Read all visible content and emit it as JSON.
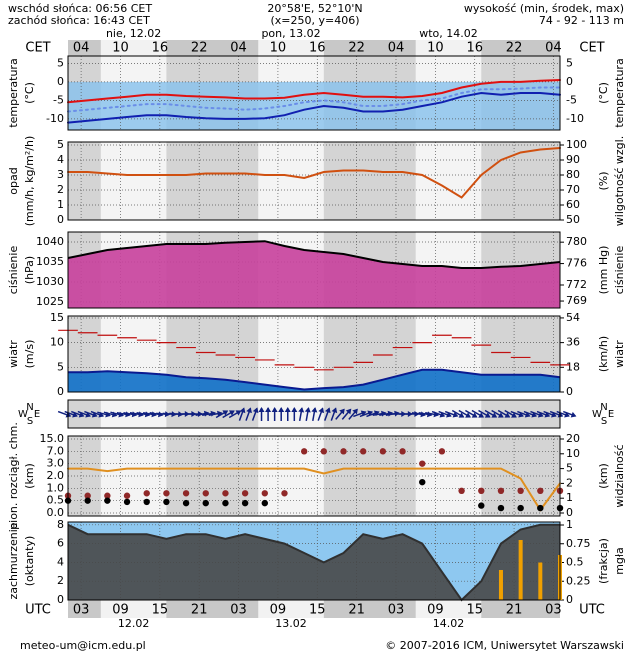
{
  "header": {
    "sunrise": "wschód słońca: 06:56 CET",
    "sunset": "zachód słońca: 16:43 CET",
    "coords": "20°58'E, 52°10'N",
    "grid": "(x=250, y=406)",
    "elevation_title": "wysokość (min, środek, max)",
    "elevation": "74 - 92 - 113 m"
  },
  "footer": {
    "email": "meteo-um@icm.edu.pl",
    "copyright": "© 2007-2016 ICM, Uniwersytet Warszawski"
  },
  "time": {
    "x": [
      2,
      5,
      8,
      11,
      14,
      17,
      20,
      23,
      26,
      29,
      32,
      35,
      38,
      41,
      44,
      47,
      50,
      53,
      56,
      59,
      62,
      65,
      68,
      71,
      74,
      77
    ],
    "xlim": [
      2,
      77
    ],
    "cet_label": "CET",
    "utc_label": "UTC",
    "cet_ticks": [
      {
        "value": 4,
        "label": "04"
      },
      {
        "value": 10,
        "label": "10"
      },
      {
        "value": 16,
        "label": "16"
      },
      {
        "value": 22,
        "label": "22"
      },
      {
        "value": 28,
        "label": "04"
      },
      {
        "value": 34,
        "label": "10"
      },
      {
        "value": 40,
        "label": "16"
      },
      {
        "value": 46,
        "label": "22"
      },
      {
        "value": 52,
        "label": "04"
      },
      {
        "value": 58,
        "label": "10"
      },
      {
        "value": 64,
        "label": "16"
      },
      {
        "value": 70,
        "label": "22"
      },
      {
        "value": 76,
        "label": "04"
      }
    ],
    "utc_ticks": [
      {
        "value": 4,
        "label": "03"
      },
      {
        "value": 10,
        "label": "09"
      },
      {
        "value": 16,
        "label": "15"
      },
      {
        "value": 22,
        "label": "21"
      },
      {
        "value": 28,
        "label": "03"
      },
      {
        "value": 34,
        "label": "09"
      },
      {
        "value": 40,
        "label": "15"
      },
      {
        "value": 46,
        "label": "21"
      },
      {
        "value": 52,
        "label": "03"
      },
      {
        "value": 58,
        "label": "09"
      },
      {
        "value": 64,
        "label": "15"
      },
      {
        "value": 70,
        "label": "21"
      },
      {
        "value": 76,
        "label": "03"
      }
    ],
    "cet_dates": [
      {
        "value": 12,
        "label": "nie, 12.02"
      },
      {
        "value": 36,
        "label": "pon, 13.02"
      },
      {
        "value": 60,
        "label": "wto, 14.02"
      }
    ],
    "utc_dates": [
      {
        "value": 12,
        "label": "12.02"
      },
      {
        "value": 36,
        "label": "13.02"
      },
      {
        "value": 60,
        "label": "14.02"
      }
    ]
  },
  "chart_data": [
    {
      "type": "line",
      "ylabel": [
        "temperatura",
        "(°C)"
      ],
      "y2label": [
        "(°C)",
        "temperatura"
      ],
      "ylim": [
        -13,
        7
      ],
      "yticks": [
        -10,
        -5,
        0,
        5
      ],
      "freeze_fill": "#86c0ec",
      "series": [
        {
          "color": "#e01010",
          "style": "line",
          "values": [
            -5.5,
            -5,
            -4.5,
            -4,
            -3.5,
            -3.5,
            -3.8,
            -4,
            -4.2,
            -4.5,
            -4.5,
            -4.3,
            -3.5,
            -3,
            -3.5,
            -4,
            -4,
            -4.2,
            -3.8,
            -3,
            -1.5,
            -0.5,
            0,
            0,
            0.3,
            0.5
          ]
        },
        {
          "color": "#6a8ee8",
          "style": "dotted",
          "values": [
            -8,
            -7.5,
            -7,
            -6.5,
            -6,
            -6,
            -6.5,
            -7,
            -7.2,
            -7.5,
            -7.2,
            -6.5,
            -5.5,
            -5,
            -5.5,
            -6.5,
            -6.5,
            -6,
            -5,
            -4.5,
            -3,
            -2,
            -2,
            -1.8,
            -1.5,
            -1.5
          ]
        },
        {
          "color": "#1020b0",
          "style": "line",
          "values": [
            -11,
            -10.5,
            -10,
            -9.5,
            -9,
            -9,
            -9.5,
            -9.8,
            -10,
            -10,
            -9.8,
            -9,
            -7.5,
            -6.5,
            -7,
            -8,
            -8,
            -7.5,
            -6.5,
            -5.5,
            -4,
            -3,
            -3.5,
            -3,
            -3,
            -3.5
          ]
        }
      ]
    },
    {
      "type": "line",
      "ylabel": [
        "opad",
        "(mm/h, kg/m²/h)"
      ],
      "y2label": [
        "(%)",
        "wilgotność wzgl."
      ],
      "ylim": [
        0,
        5.2
      ],
      "yticks": [
        0,
        1,
        2,
        3,
        4,
        5
      ],
      "y2lim": [
        50,
        102
      ],
      "y2ticks": [
        50,
        60,
        70,
        80,
        90,
        100
      ],
      "y2color": "#d05010",
      "series": [
        {
          "color": "#d05010",
          "style": "line",
          "axis": "y2",
          "values": [
            82,
            82,
            81,
            80,
            80,
            80,
            80,
            81,
            81,
            81,
            80,
            80,
            78,
            82,
            83,
            83,
            82,
            82,
            80,
            73,
            65,
            80,
            90,
            95,
            97,
            98
          ]
        }
      ]
    },
    {
      "type": "line",
      "ylabel": [
        "ciśnienie",
        "(hPa)"
      ],
      "y2label": [
        "(mm Hg)",
        "ciśnienie"
      ],
      "ylim": [
        1023.5,
        1042.5
      ],
      "yticks": [
        1025,
        1030,
        1035,
        1040
      ],
      "y2lim": [
        767.7,
        781.9
      ],
      "y2ticks": [
        769,
        772,
        776,
        780
      ],
      "series": [
        {
          "color": "#000000",
          "fill": "#c8409c",
          "style": "area",
          "values": [
            1036,
            1037,
            1038,
            1038.5,
            1039,
            1039.5,
            1039.5,
            1039.5,
            1039.8,
            1040,
            1040.2,
            1039,
            1038,
            1037.5,
            1037,
            1036,
            1035,
            1034.5,
            1034,
            1034,
            1033.5,
            1033.5,
            1033.8,
            1034,
            1034.5,
            1035
          ]
        }
      ]
    },
    {
      "type": "line",
      "ylabel": [
        "wiatr",
        "(m/s)"
      ],
      "y2label": [
        "(km/h)",
        "wiatr"
      ],
      "ylim": [
        0,
        15.4
      ],
      "yticks": [
        0,
        5,
        10,
        15
      ],
      "y2lim": [
        0,
        55.4
      ],
      "y2ticks": [
        0,
        18,
        36,
        54
      ],
      "series": [
        {
          "color": "#0a1a90",
          "fill": "#1070c8",
          "style": "area",
          "values": [
            4,
            4,
            4.2,
            4,
            3.8,
            3.5,
            3,
            2.8,
            2.5,
            2,
            1.5,
            1,
            0.5,
            0.8,
            1,
            1.5,
            2.5,
            3.5,
            4.5,
            4.5,
            4,
            3.5,
            3.5,
            3.5,
            3.5,
            3
          ]
        },
        {
          "color": "#c01010",
          "style": "steps",
          "values": [
            12.5,
            12,
            11.5,
            11,
            10.5,
            10,
            9,
            8,
            7.5,
            7,
            6.5,
            5.5,
            5,
            4.5,
            5,
            6,
            7.5,
            9,
            10,
            11.5,
            11,
            9.5,
            8,
            7,
            6,
            5.5
          ]
        }
      ]
    },
    {
      "type": "arrows",
      "compass": [
        "N",
        "E",
        "S",
        "W"
      ],
      "color": "#102080",
      "values": [
        290,
        290,
        285,
        280,
        280,
        275,
        270,
        260,
        240,
        200,
        180,
        180,
        190,
        200,
        220,
        250,
        260,
        270,
        280,
        290,
        300,
        300,
        300,
        290,
        290,
        290
      ]
    },
    {
      "type": "line",
      "ylabel": [
        "pion. rozciągł. chm.",
        "(km)"
      ],
      "y2label": [
        "(km)",
        "widzialność"
      ],
      "yticks": [
        {
          "value": 0,
          "label": "0.0"
        },
        {
          "value": 0.5,
          "label": "0.5"
        },
        {
          "value": 1,
          "label": "1.0"
        },
        {
          "value": 2,
          "label": "2.0"
        },
        {
          "value": 3,
          "label": "3.0"
        },
        {
          "value": 7,
          "label": "7.0"
        },
        {
          "value": 15,
          "label": "15.0"
        }
      ],
      "y2ticks": [
        0,
        1,
        2,
        5,
        10,
        20
      ],
      "y2color": "#d06010",
      "series": [
        {
          "color": "#e09020",
          "style": "line",
          "axis": "y2",
          "values": [
            5,
            5,
            4.5,
            5,
            5,
            5,
            5,
            5,
            5,
            5,
            5,
            5,
            5,
            4,
            5,
            5,
            5,
            5,
            5,
            5,
            5,
            5,
            5,
            3,
            0.2,
            2
          ]
        },
        {
          "color": "#902828",
          "style": "dots",
          "values": [
            0.7,
            0.7,
            0.7,
            0.7,
            0.8,
            0.8,
            0.8,
            0.8,
            0.8,
            0.8,
            0.8,
            0.8,
            7,
            7,
            7,
            7,
            7,
            7,
            3,
            7,
            0.9,
            0.9,
            0.9,
            0.9,
            0.9,
            0.9
          ]
        },
        {
          "color": "#000000",
          "style": "dots",
          "values": [
            0.5,
            0.5,
            0.5,
            0.45,
            0.45,
            0.45,
            0.4,
            0.4,
            0.4,
            0.4,
            0.4,
            null,
            null,
            null,
            null,
            null,
            null,
            null,
            1.5,
            null,
            null,
            0.3,
            0.2,
            0.2,
            0.2,
            0.2
          ]
        }
      ]
    },
    {
      "type": "line",
      "ylabel": [
        "zachmurzenie",
        "(oktanty)"
      ],
      "y2label": [
        "(frakcja)",
        "mgła"
      ],
      "ylim": [
        0,
        8.3
      ],
      "yticks": [
        0,
        2,
        4,
        6,
        8
      ],
      "y2lim": [
        0,
        1.04
      ],
      "y2ticks": [
        0,
        0.25,
        0.5,
        0.75,
        1
      ],
      "y2color": "#e09000",
      "background": "#8ec8f0",
      "series": [
        {
          "color": "#303030",
          "fill": "#484848",
          "style": "area",
          "values": [
            8,
            7,
            7,
            7,
            7,
            6.5,
            7,
            7,
            6.5,
            7,
            6.5,
            6,
            5,
            4,
            5,
            7,
            6.5,
            7,
            6,
            3,
            0,
            2,
            6,
            7.5,
            8,
            8
          ]
        },
        {
          "color": "#f0a000",
          "style": "bars",
          "axis": "y2",
          "values": [
            0,
            0,
            0,
            0,
            0,
            0,
            0,
            0,
            0,
            0,
            0,
            0,
            0,
            0,
            0,
            0,
            0,
            0,
            0,
            0,
            0,
            0,
            0.4,
            0.8,
            0.5,
            0.6
          ]
        }
      ]
    }
  ]
}
